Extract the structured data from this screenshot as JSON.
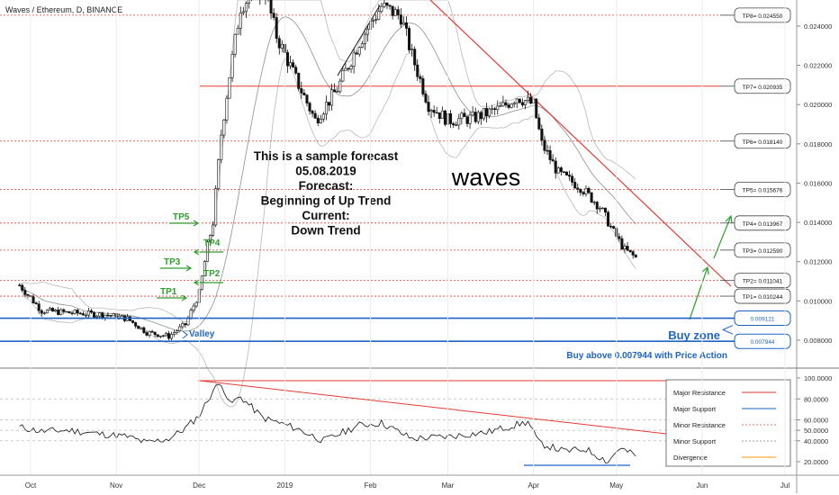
{
  "header": {
    "symbol_title": "Waves / Ethereum, D, BINANCE"
  },
  "watermark": "waves",
  "forecast_note": [
    "This is a sample forecast",
    "05.08.2019",
    "Forecast:",
    "Beginning of Up Trend",
    "Current:",
    "Down Trend"
  ],
  "targets": [
    {
      "label": "TP8= 0.024550",
      "value": 0.02455,
      "line": "dotted"
    },
    {
      "label": "TP7= 0.020935",
      "value": 0.020935,
      "line": "solid"
    },
    {
      "label": "TP6= 0.018140",
      "value": 0.01814,
      "line": "dotted"
    },
    {
      "label": "TP5= 0.015676",
      "value": 0.015676,
      "line": "dotted"
    },
    {
      "label": "TP4= 0.013967",
      "value": 0.013967,
      "line": "dotted"
    },
    {
      "label": "TP3= 0.012590",
      "value": 0.01259,
      "line": "dotted"
    },
    {
      "label": "TP2= 0.011041",
      "value": 0.011041,
      "line": "dotted"
    },
    {
      "label": "TP1= 0.010244",
      "value": 0.010244,
      "line": "dotted"
    }
  ],
  "zone": {
    "label": "Buy zone",
    "upper": {
      "label": "0.009121",
      "value": 0.009121
    },
    "lower": {
      "label": "0.007944",
      "value": 0.007944
    },
    "note": "Buy above 0.007944 with Price Action"
  },
  "left_annotations": {
    "tp_labels": [
      "TP1",
      "TP3",
      "TP5",
      "TP4",
      "TP2"
    ],
    "valley": "Valley"
  },
  "legend": {
    "items": [
      {
        "label": "Major Resistance",
        "color": "#e53935",
        "style": "solid"
      },
      {
        "label": "Major Support",
        "color": "#1e63c6",
        "style": "solid"
      },
      {
        "label": "Minor Resistance",
        "color": "#e57373",
        "style": "dotted"
      },
      {
        "label": "Minor Support",
        "color": "#90a4ae",
        "style": "dotted"
      },
      {
        "label": "Divergence",
        "color": "#ff9800",
        "style": "solid"
      }
    ]
  },
  "colors": {
    "resistance": "#e53935",
    "support": "#1e63c6",
    "annotation_green": "#2e9e2e",
    "candle_up": "#ffffff",
    "candle_down": "#111111",
    "band": "#b8b8b8"
  },
  "chart_data": [
    {
      "type": "candlestick",
      "x_axis": {
        "type": "date",
        "tick_labels": [
          "Oct",
          "Nov",
          "Dec",
          "2019",
          "Feb",
          "Mar",
          "Apr",
          "May",
          "Jun",
          "Jul"
        ],
        "tick_dates": [
          "2018-10-01",
          "2018-11-01",
          "2018-12-01",
          "2019-01-01",
          "2019-02-01",
          "2019-03-01",
          "2019-04-01",
          "2019-05-01",
          "2019-06-01",
          "2019-07-01"
        ]
      },
      "y_axis": {
        "position": "right",
        "tick_labels": [
          "0.024000",
          "0.022000",
          "0.020000",
          "0.018000",
          "0.016000",
          "0.014000",
          "0.012000",
          "0.010000",
          "0.008000"
        ],
        "range": [
          0.0077,
          0.0253
        ]
      },
      "close_path": [
        [
          "2018-09-27",
          0.0108
        ],
        [
          "2018-10-05",
          0.0095
        ],
        [
          "2018-10-15",
          0.0094
        ],
        [
          "2018-10-28",
          0.0093
        ],
        [
          "2018-11-05",
          0.0091
        ],
        [
          "2018-11-12",
          0.0084
        ],
        [
          "2018-11-20",
          0.0082
        ],
        [
          "2018-11-26",
          0.0088
        ],
        [
          "2018-12-01",
          0.0104
        ],
        [
          "2018-12-04",
          0.0128
        ],
        [
          "2018-12-06",
          0.014
        ],
        [
          "2018-12-09",
          0.0185
        ],
        [
          "2018-12-12",
          0.0215
        ],
        [
          "2018-12-16",
          0.025
        ],
        [
          "2018-12-24",
          0.0262
        ],
        [
          "2018-12-29",
          0.0235
        ],
        [
          "2019-01-06",
          0.021
        ],
        [
          "2019-01-12",
          0.0192
        ],
        [
          "2019-01-20",
          0.0208
        ],
        [
          "2019-01-28",
          0.0232
        ],
        [
          "2019-02-05",
          0.025
        ],
        [
          "2019-02-12",
          0.0245
        ],
        [
          "2019-02-16",
          0.0225
        ],
        [
          "2019-02-22",
          0.02
        ],
        [
          "2019-03-01",
          0.0192
        ],
        [
          "2019-03-10",
          0.0193
        ],
        [
          "2019-03-20",
          0.0198
        ],
        [
          "2019-03-26",
          0.0204
        ],
        [
          "2019-04-01",
          0.02
        ],
        [
          "2019-04-04",
          0.018
        ],
        [
          "2019-04-10",
          0.0165
        ],
        [
          "2019-04-18",
          0.0158
        ],
        [
          "2019-04-25",
          0.0148
        ],
        [
          "2019-04-30",
          0.0135
        ],
        [
          "2019-05-04",
          0.0126
        ],
        [
          "2019-05-08",
          0.0122
        ]
      ]
    },
    {
      "type": "line",
      "name": "",
      "y_axis": {
        "position": "right",
        "tick_labels": [
          "100.0000",
          "80.0000",
          "60.0000",
          "50.0000",
          "40.0000",
          "20.0000"
        ],
        "range": [
          10,
          100
        ]
      },
      "series": [
        {
          "name": "",
          "points": [
            [
              "2018-09-27",
              53
            ],
            [
              "2018-10-05",
              49
            ],
            [
              "2018-10-15",
              50
            ],
            [
              "2018-10-28",
              46
            ],
            [
              "2018-11-05",
              44
            ],
            [
              "2018-11-12",
              38
            ],
            [
              "2018-11-20",
              42
            ],
            [
              "2018-11-26",
              52
            ],
            [
              "2018-12-01",
              64
            ],
            [
              "2018-12-06",
              88
            ],
            [
              "2018-12-09",
              96
            ],
            [
              "2018-12-12",
              75
            ],
            [
              "2018-12-16",
              82
            ],
            [
              "2018-12-24",
              62
            ],
            [
              "2019-01-05",
              52
            ],
            [
              "2019-01-15",
              40
            ],
            [
              "2019-01-28",
              55
            ],
            [
              "2019-02-05",
              57
            ],
            [
              "2019-02-16",
              42
            ],
            [
              "2019-03-01",
              44
            ],
            [
              "2019-03-15",
              48
            ],
            [
              "2019-03-30",
              58
            ],
            [
              "2019-04-03",
              38
            ],
            [
              "2019-04-12",
              30
            ],
            [
              "2019-04-20",
              32
            ],
            [
              "2019-04-28",
              20
            ],
            [
              "2019-05-02",
              33
            ],
            [
              "2019-05-08",
              26
            ]
          ]
        }
      ]
    }
  ]
}
